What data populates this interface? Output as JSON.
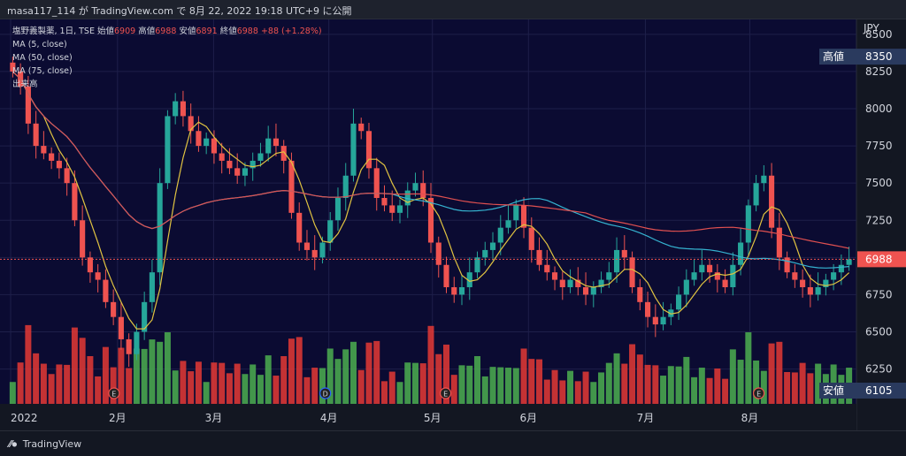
{
  "header": {
    "text": "masa117_114 が TradingView.com で 8月 22, 2022 19:18 UTC+9 に公開"
  },
  "legend": {
    "symbol": "塩野義製薬, 1日, TSE",
    "open_label": "始値",
    "open_value": "6909",
    "high_label": "高値",
    "high_value": "6988",
    "low_label": "安値",
    "low_value": "6891",
    "close_label": "終値",
    "close_value": "6988",
    "change": "+88 (+1.28%)",
    "ma_lines": [
      "MA (5, close)",
      "MA (50, close)",
      "MA (75, close)"
    ],
    "volume_label": "出来高"
  },
  "footer": {
    "brand": "TradingView",
    "brand_icon": "tradingview-logo-icon"
  },
  "colors": {
    "background": "#0b0b32",
    "up": "#26a69a",
    "down": "#ef5350",
    "vol_up": "#4caf50",
    "vol_down": "#e53935",
    "ma5": "#e0c341",
    "ma50": "#35b3d0",
    "ma75": "#e05050"
  },
  "chart_data": {
    "type": "candlestick",
    "title": "",
    "currency": "JPY",
    "y_ticks": [
      8500,
      8250,
      8000,
      7750,
      7500,
      7250,
      7000,
      6750,
      6500,
      6250
    ],
    "ylim": [
      6105,
      8600
    ],
    "x_ticks": [
      "2022",
      "2月",
      "3月",
      "4月",
      "5月",
      "6月",
      "7月",
      "8月"
    ],
    "price_labels": {
      "high": {
        "label": "高値",
        "value": 8350
      },
      "low": {
        "label": "安値",
        "value": 6105
      },
      "last": {
        "value": 6988
      }
    },
    "event_markers": [
      {
        "label": "E",
        "month": "2月"
      },
      {
        "label": "D",
        "month": "4月"
      },
      {
        "label": "E",
        "month": "5月"
      },
      {
        "label": "E",
        "month": "8月"
      }
    ],
    "close_series": [
      8250,
      8150,
      7900,
      7750,
      7700,
      7650,
      7600,
      7500,
      7250,
      7000,
      6900,
      6850,
      6700,
      6600,
      6450,
      6350,
      6500,
      6700,
      6900,
      7500,
      7950,
      8050,
      7950,
      7850,
      7750,
      7800,
      7700,
      7650,
      7600,
      7550,
      7600,
      7650,
      7700,
      7800,
      7750,
      7650,
      7300,
      7100,
      7050,
      7000,
      7100,
      7250,
      7400,
      7550,
      7900,
      7850,
      7600,
      7400,
      7350,
      7300,
      7350,
      7450,
      7500,
      7400,
      7100,
      6950,
      6800,
      6750,
      6800,
      6900,
      7000,
      7050,
      7100,
      7200,
      7250,
      7350,
      7200,
      7050,
      6950,
      6900,
      6850,
      6800,
      6850,
      6800,
      6750,
      6800,
      6850,
      6900,
      7050,
      7000,
      6800,
      6700,
      6600,
      6550,
      6600,
      6650,
      6750,
      6850,
      6900,
      6950,
      6900,
      6850,
      6800,
      6950,
      7100,
      7350,
      7500,
      7550,
      7200,
      7000,
      6900,
      6850,
      6800,
      6750,
      6800,
      6850,
      6900,
      6950,
      6988
    ],
    "volume_range": [
      0,
      100
    ]
  }
}
